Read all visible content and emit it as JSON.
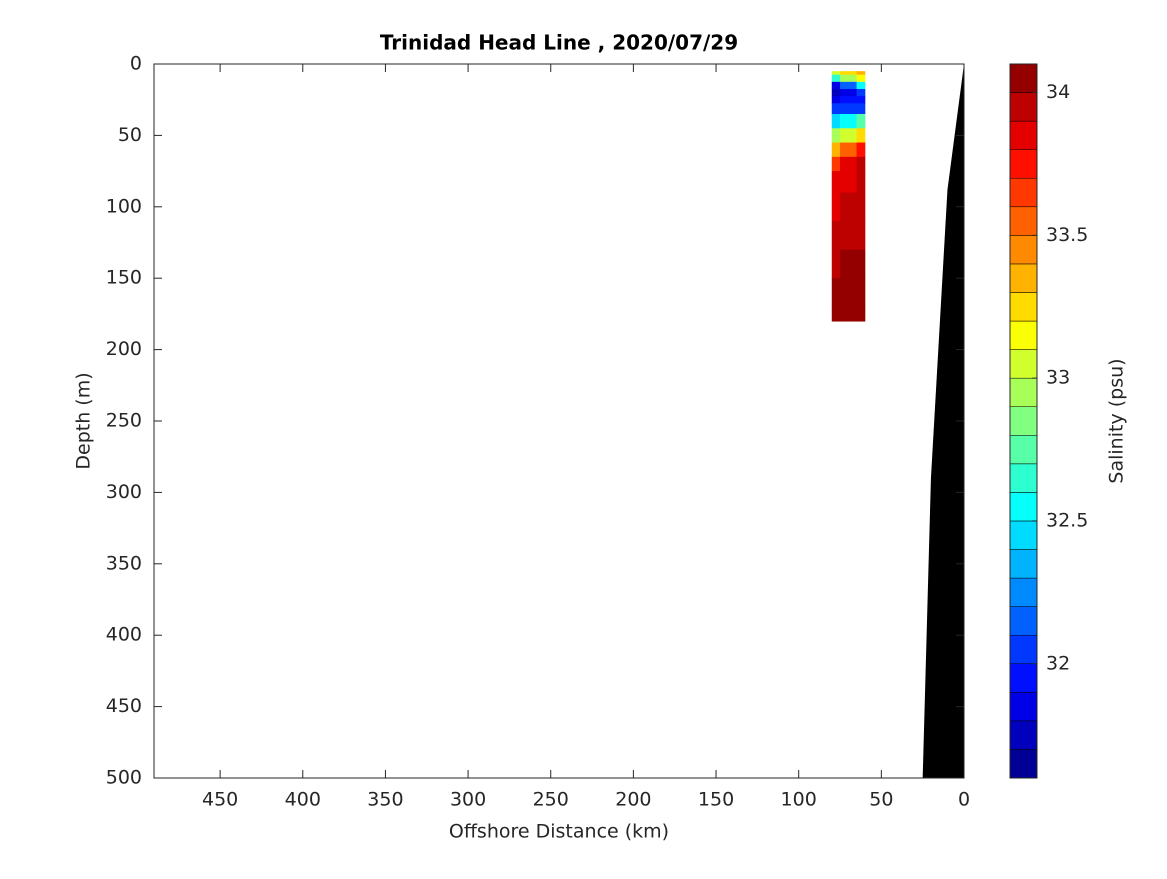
{
  "chart_data": {
    "type": "contour",
    "title": "Trinidad Head Line , 2020/07/29",
    "xlabel": "Offshore Distance (km)",
    "ylabel": "Depth (m)",
    "xlim": [
      490,
      0
    ],
    "xticks": [
      450,
      400,
      350,
      300,
      250,
      200,
      150,
      100,
      50,
      0
    ],
    "ylim": [
      0,
      500
    ],
    "yticks": [
      0,
      50,
      100,
      150,
      200,
      250,
      300,
      350,
      400,
      450,
      500
    ],
    "x": [
      80,
      70,
      60
    ],
    "y": [
      5,
      10,
      15,
      20,
      25,
      30,
      40,
      50,
      60,
      70,
      80,
      100,
      120,
      140,
      160,
      180
    ],
    "values": [
      [
        33.0,
        33.2,
        33.3
      ],
      [
        32.6,
        32.9,
        33.1
      ],
      [
        31.8,
        32.1,
        32.5
      ],
      [
        31.7,
        31.8,
        32.0
      ],
      [
        31.8,
        31.9,
        31.9
      ],
      [
        32.0,
        32.0,
        32.0
      ],
      [
        32.4,
        32.5,
        32.7
      ],
      [
        32.9,
        33.0,
        33.2
      ],
      [
        33.3,
        33.5,
        33.7
      ],
      [
        33.6,
        33.8,
        33.9
      ],
      [
        33.8,
        33.8,
        33.9
      ],
      [
        33.8,
        33.9,
        33.9
      ],
      [
        33.9,
        33.9,
        33.9
      ],
      [
        33.9,
        34.0,
        34.0
      ],
      [
        34.0,
        34.0,
        34.0
      ],
      [
        34.0,
        34.0,
        34.0
      ]
    ],
    "colormap": "jet",
    "bathymetry": {
      "color": "#000000",
      "distance": [
        0,
        10,
        20,
        25,
        0
      ],
      "depth": [
        0,
        88,
        290,
        500,
        500
      ]
    },
    "colorbar": {
      "label": "Salinity (psu)",
      "lim": [
        31.6,
        34.1
      ],
      "ticks": [
        32,
        32.5,
        33,
        33.5,
        34
      ],
      "levels": [
        31.6,
        31.7,
        31.8,
        31.9,
        32.0,
        32.1,
        32.2,
        32.3,
        32.4,
        32.5,
        32.6,
        32.7,
        32.8,
        32.9,
        33.0,
        33.1,
        33.2,
        33.3,
        33.4,
        33.5,
        33.6,
        33.7,
        33.8,
        33.9,
        34.0,
        34.1
      ]
    }
  }
}
